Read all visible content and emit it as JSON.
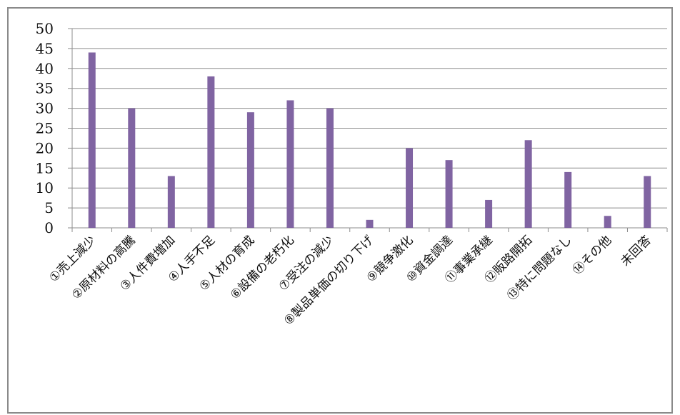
{
  "chart_data": {
    "type": "bar",
    "categories": [
      "①売上減少",
      "②原材料の高騰",
      "③人件費増加",
      "④人手不足",
      "⑤人材の育成",
      "⑥設備の老朽化",
      "⑦受注の減少",
      "⑧製品単価の切り下げ",
      "⑨競争激化",
      "⑩資金調達",
      "⑪事業承継",
      "⑫販路開拓",
      "⑬特に問題なし",
      "⑭その他",
      "未回答"
    ],
    "values": [
      44,
      30,
      13,
      38,
      29,
      32,
      30,
      2,
      20,
      17,
      7,
      22,
      14,
      3,
      13
    ],
    "ylim": [
      0,
      50
    ],
    "yticks": [
      "0",
      "5",
      "10",
      "15",
      "20",
      "25",
      "30",
      "35",
      "40",
      "45",
      "50"
    ],
    "grid": true,
    "bar_color": "#8064a2",
    "grid_color": "#8c8c8c"
  }
}
